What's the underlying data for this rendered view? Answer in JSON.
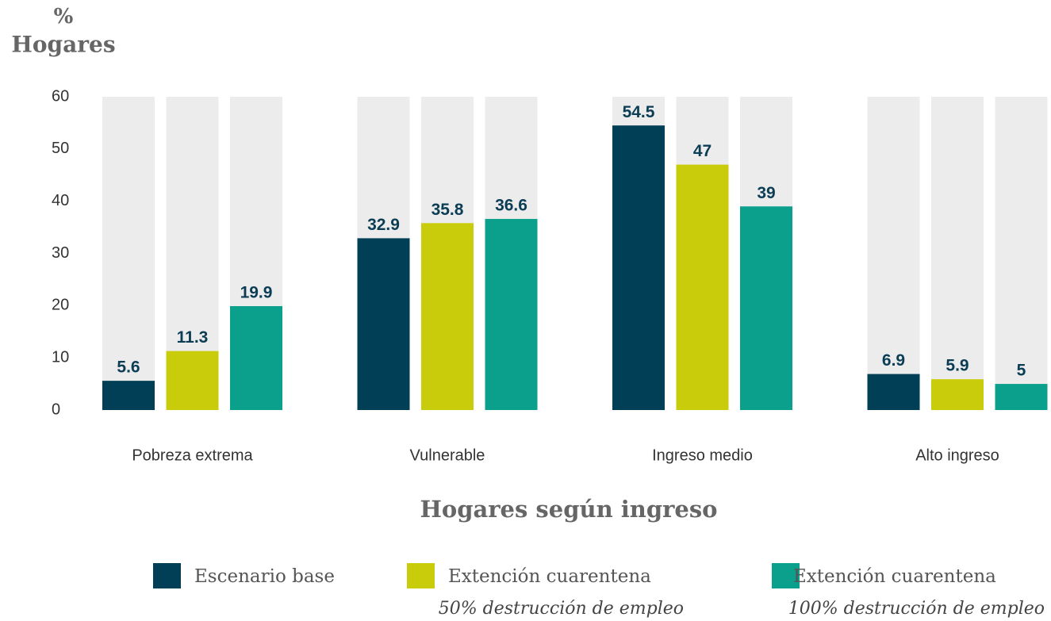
{
  "chart_data": {
    "type": "bar",
    "y_label": [
      "%",
      "Hogares"
    ],
    "x_label": "Hogares según ingreso",
    "categories": [
      "Pobreza extrema",
      "Vulnerable",
      "Ingreso medio",
      "Alto ingreso"
    ],
    "series": [
      {
        "name": "Escenario base",
        "color": "#003f55",
        "values": [
          5.6,
          32.9,
          54.5,
          6.9
        ]
      },
      {
        "name": "Extención cuarentena",
        "note": "50% destrucción de empleo",
        "color": "#c9cc0a",
        "values": [
          11.3,
          35.8,
          47,
          5.9
        ]
      },
      {
        "name": "Extención cuarentena",
        "note": "100% destrucción de empleo",
        "color": "#0aa08b",
        "values": [
          19.9,
          36.6,
          39,
          5
        ]
      }
    ],
    "ylim": [
      0,
      60
    ],
    "yticks": [
      0,
      10,
      20,
      30,
      40,
      50,
      60
    ],
    "background_bars": true,
    "background_color": "#ececec"
  }
}
